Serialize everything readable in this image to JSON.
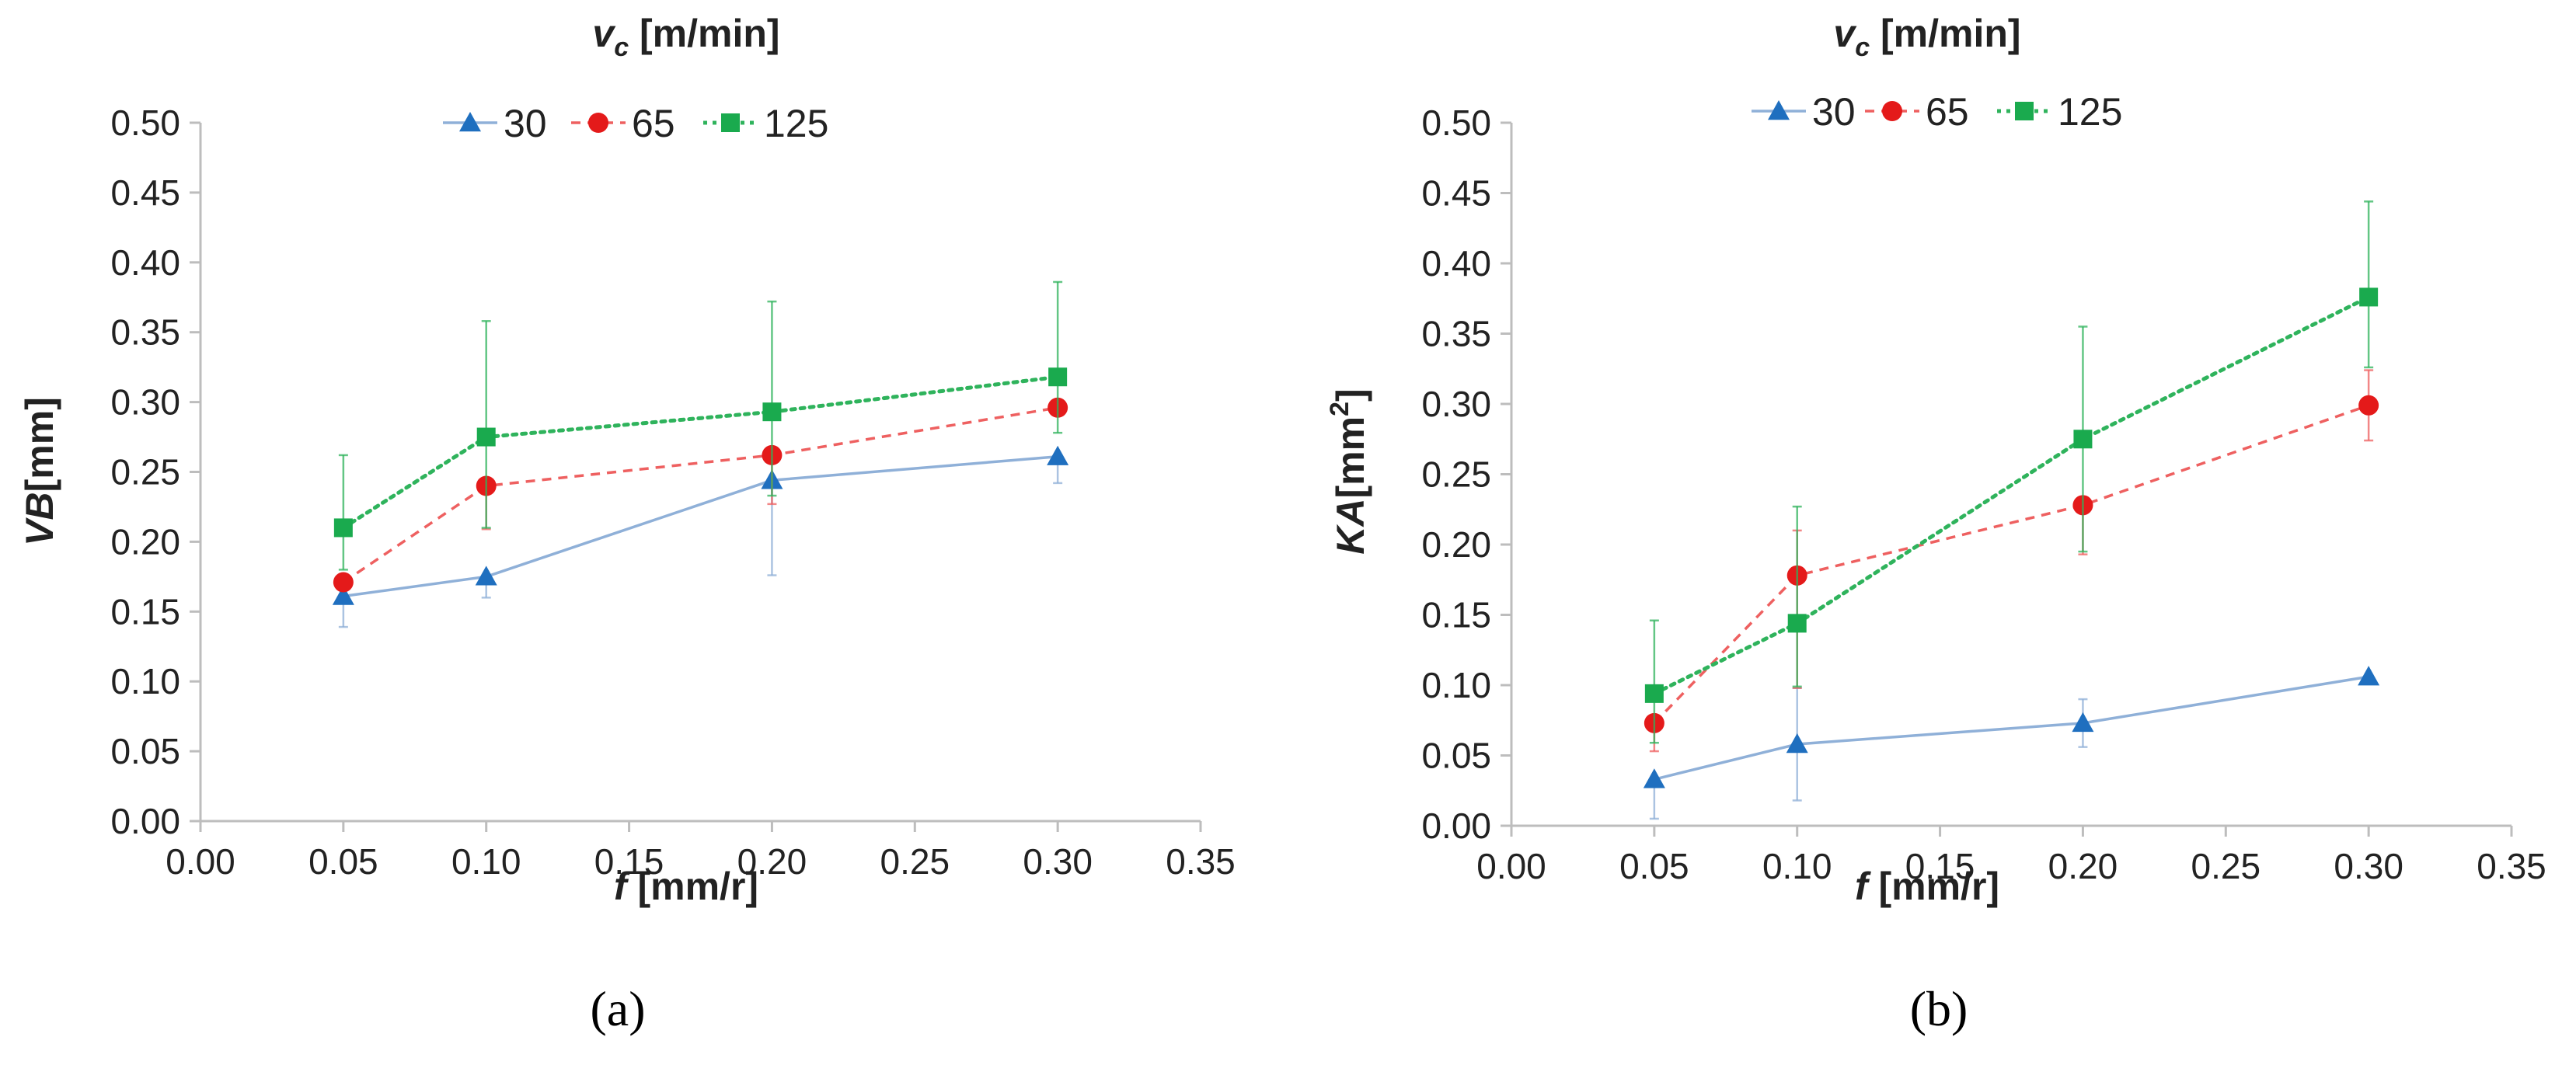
{
  "chart_data": [
    {
      "type": "line",
      "panel_label": "(a)",
      "title_var": "v",
      "title_sub": "c",
      "title_unit": " [m/min]",
      "xlabel_var": "f",
      "xlabel_unit": " [mm/r]",
      "ylabel_var": "VB",
      "ylabel_unit": "[mm]",
      "ylabel_sup": "",
      "xlim": [
        0,
        0.35
      ],
      "ylim": [
        0,
        0.5
      ],
      "xticks": [
        "0.00",
        "0.05",
        "0.10",
        "0.15",
        "0.20",
        "0.25",
        "0.30",
        "0.35"
      ],
      "yticks": [
        "0.00",
        "0.05",
        "0.10",
        "0.15",
        "0.20",
        "0.25",
        "0.30",
        "0.35",
        "0.40",
        "0.45",
        "0.50"
      ],
      "x": [
        0.05,
        0.1,
        0.2,
        0.3
      ],
      "legend_position": "top",
      "series": [
        {
          "name": "30",
          "color": "#1f6fbf",
          "line_color": "#8fb0d8",
          "marker": "triangle",
          "dash": "solid",
          "values": [
            0.161,
            0.175,
            0.244,
            0.261
          ],
          "err_low": [
            0.022,
            0.015,
            0.068,
            0.019
          ],
          "err_high": [
            0.004,
            0.0,
            0.0,
            0.0
          ]
        },
        {
          "name": "65",
          "color": "#e41a1a",
          "line_color": "#ee6060",
          "marker": "circle",
          "dash": "dashed",
          "values": [
            0.171,
            0.24,
            0.262,
            0.296
          ],
          "err_low": [
            0.0,
            0.031,
            0.035,
            0.0
          ],
          "err_high": [
            0.0,
            0.0,
            0.0,
            0.0
          ]
        },
        {
          "name": "125",
          "color": "#1aaa4e",
          "line_color": "#2fb35c",
          "marker": "square",
          "dash": "dotted",
          "values": [
            0.21,
            0.275,
            0.293,
            0.318
          ],
          "err_low": [
            0.03,
            0.065,
            0.06,
            0.04
          ],
          "err_high": [
            0.052,
            0.083,
            0.079,
            0.068
          ]
        }
      ]
    },
    {
      "type": "line",
      "panel_label": "(b)",
      "title_var": "v",
      "title_sub": "c",
      "title_unit": " [m/min]",
      "xlabel_var": "f",
      "xlabel_unit": " [mm/r]",
      "ylabel_var": "KA",
      "ylabel_unit": "[mm",
      "ylabel_sup": "2",
      "ylabel_close": "]",
      "xlim": [
        0,
        0.35
      ],
      "ylim": [
        0,
        0.5
      ],
      "xticks": [
        "0.00",
        "0.05",
        "0.10",
        "0.15",
        "0.20",
        "0.25",
        "0.30",
        "0.35"
      ],
      "yticks": [
        "0.00",
        "0.05",
        "0.10",
        "0.15",
        "0.20",
        "0.25",
        "0.30",
        "0.35",
        "0.40",
        "0.45",
        "0.50"
      ],
      "x": [
        0.05,
        0.1,
        0.2,
        0.3
      ],
      "legend_position": "top",
      "series": [
        {
          "name": "30",
          "color": "#1f6fbf",
          "line_color": "#8fb0d8",
          "marker": "triangle",
          "dash": "solid",
          "values": [
            0.033,
            0.058,
            0.073,
            0.106
          ],
          "err_low": [
            0.028,
            0.04,
            0.017,
            0.0
          ],
          "err_high": [
            0.0,
            0.04,
            0.017,
            0.0
          ]
        },
        {
          "name": "65",
          "color": "#e41a1a",
          "line_color": "#ee6060",
          "marker": "circle",
          "dash": "dashed",
          "values": [
            0.073,
            0.178,
            0.228,
            0.299
          ],
          "err_low": [
            0.02,
            0.08,
            0.035,
            0.025
          ],
          "err_high": [
            0.0,
            0.032,
            0.0,
            0.025
          ]
        },
        {
          "name": "125",
          "color": "#1aaa4e",
          "line_color": "#2fb35c",
          "marker": "square",
          "dash": "dotted",
          "values": [
            0.094,
            0.144,
            0.275,
            0.376
          ],
          "err_low": [
            0.035,
            0.045,
            0.08,
            0.05
          ],
          "err_high": [
            0.052,
            0.083,
            0.08,
            0.068
          ]
        }
      ]
    }
  ]
}
